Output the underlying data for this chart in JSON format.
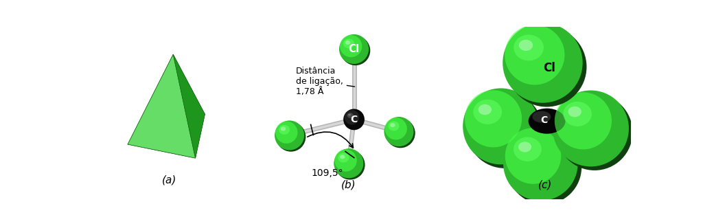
{
  "bg_color": "#ffffff",
  "label_a": "(a)",
  "label_b": "(b)",
  "label_c": "(c)",
  "text_distancia": "Distância\nde ligação,\n1,78 Å",
  "text_angle": "109,5°",
  "label_Cl_b": "Cl",
  "label_C_b": "C",
  "label_Cl_c": "Cl",
  "label_C_c": "C",
  "green_base": "#2db82d",
  "green_light": "#5cd65c",
  "green_dark": "#1a7a1a",
  "green_highlight": "#88ee88",
  "carbon_base": "#1a1a1a",
  "bond_color": "#aaaaaa",
  "figsize": [
    10.24,
    3.26
  ],
  "dpi": 100
}
